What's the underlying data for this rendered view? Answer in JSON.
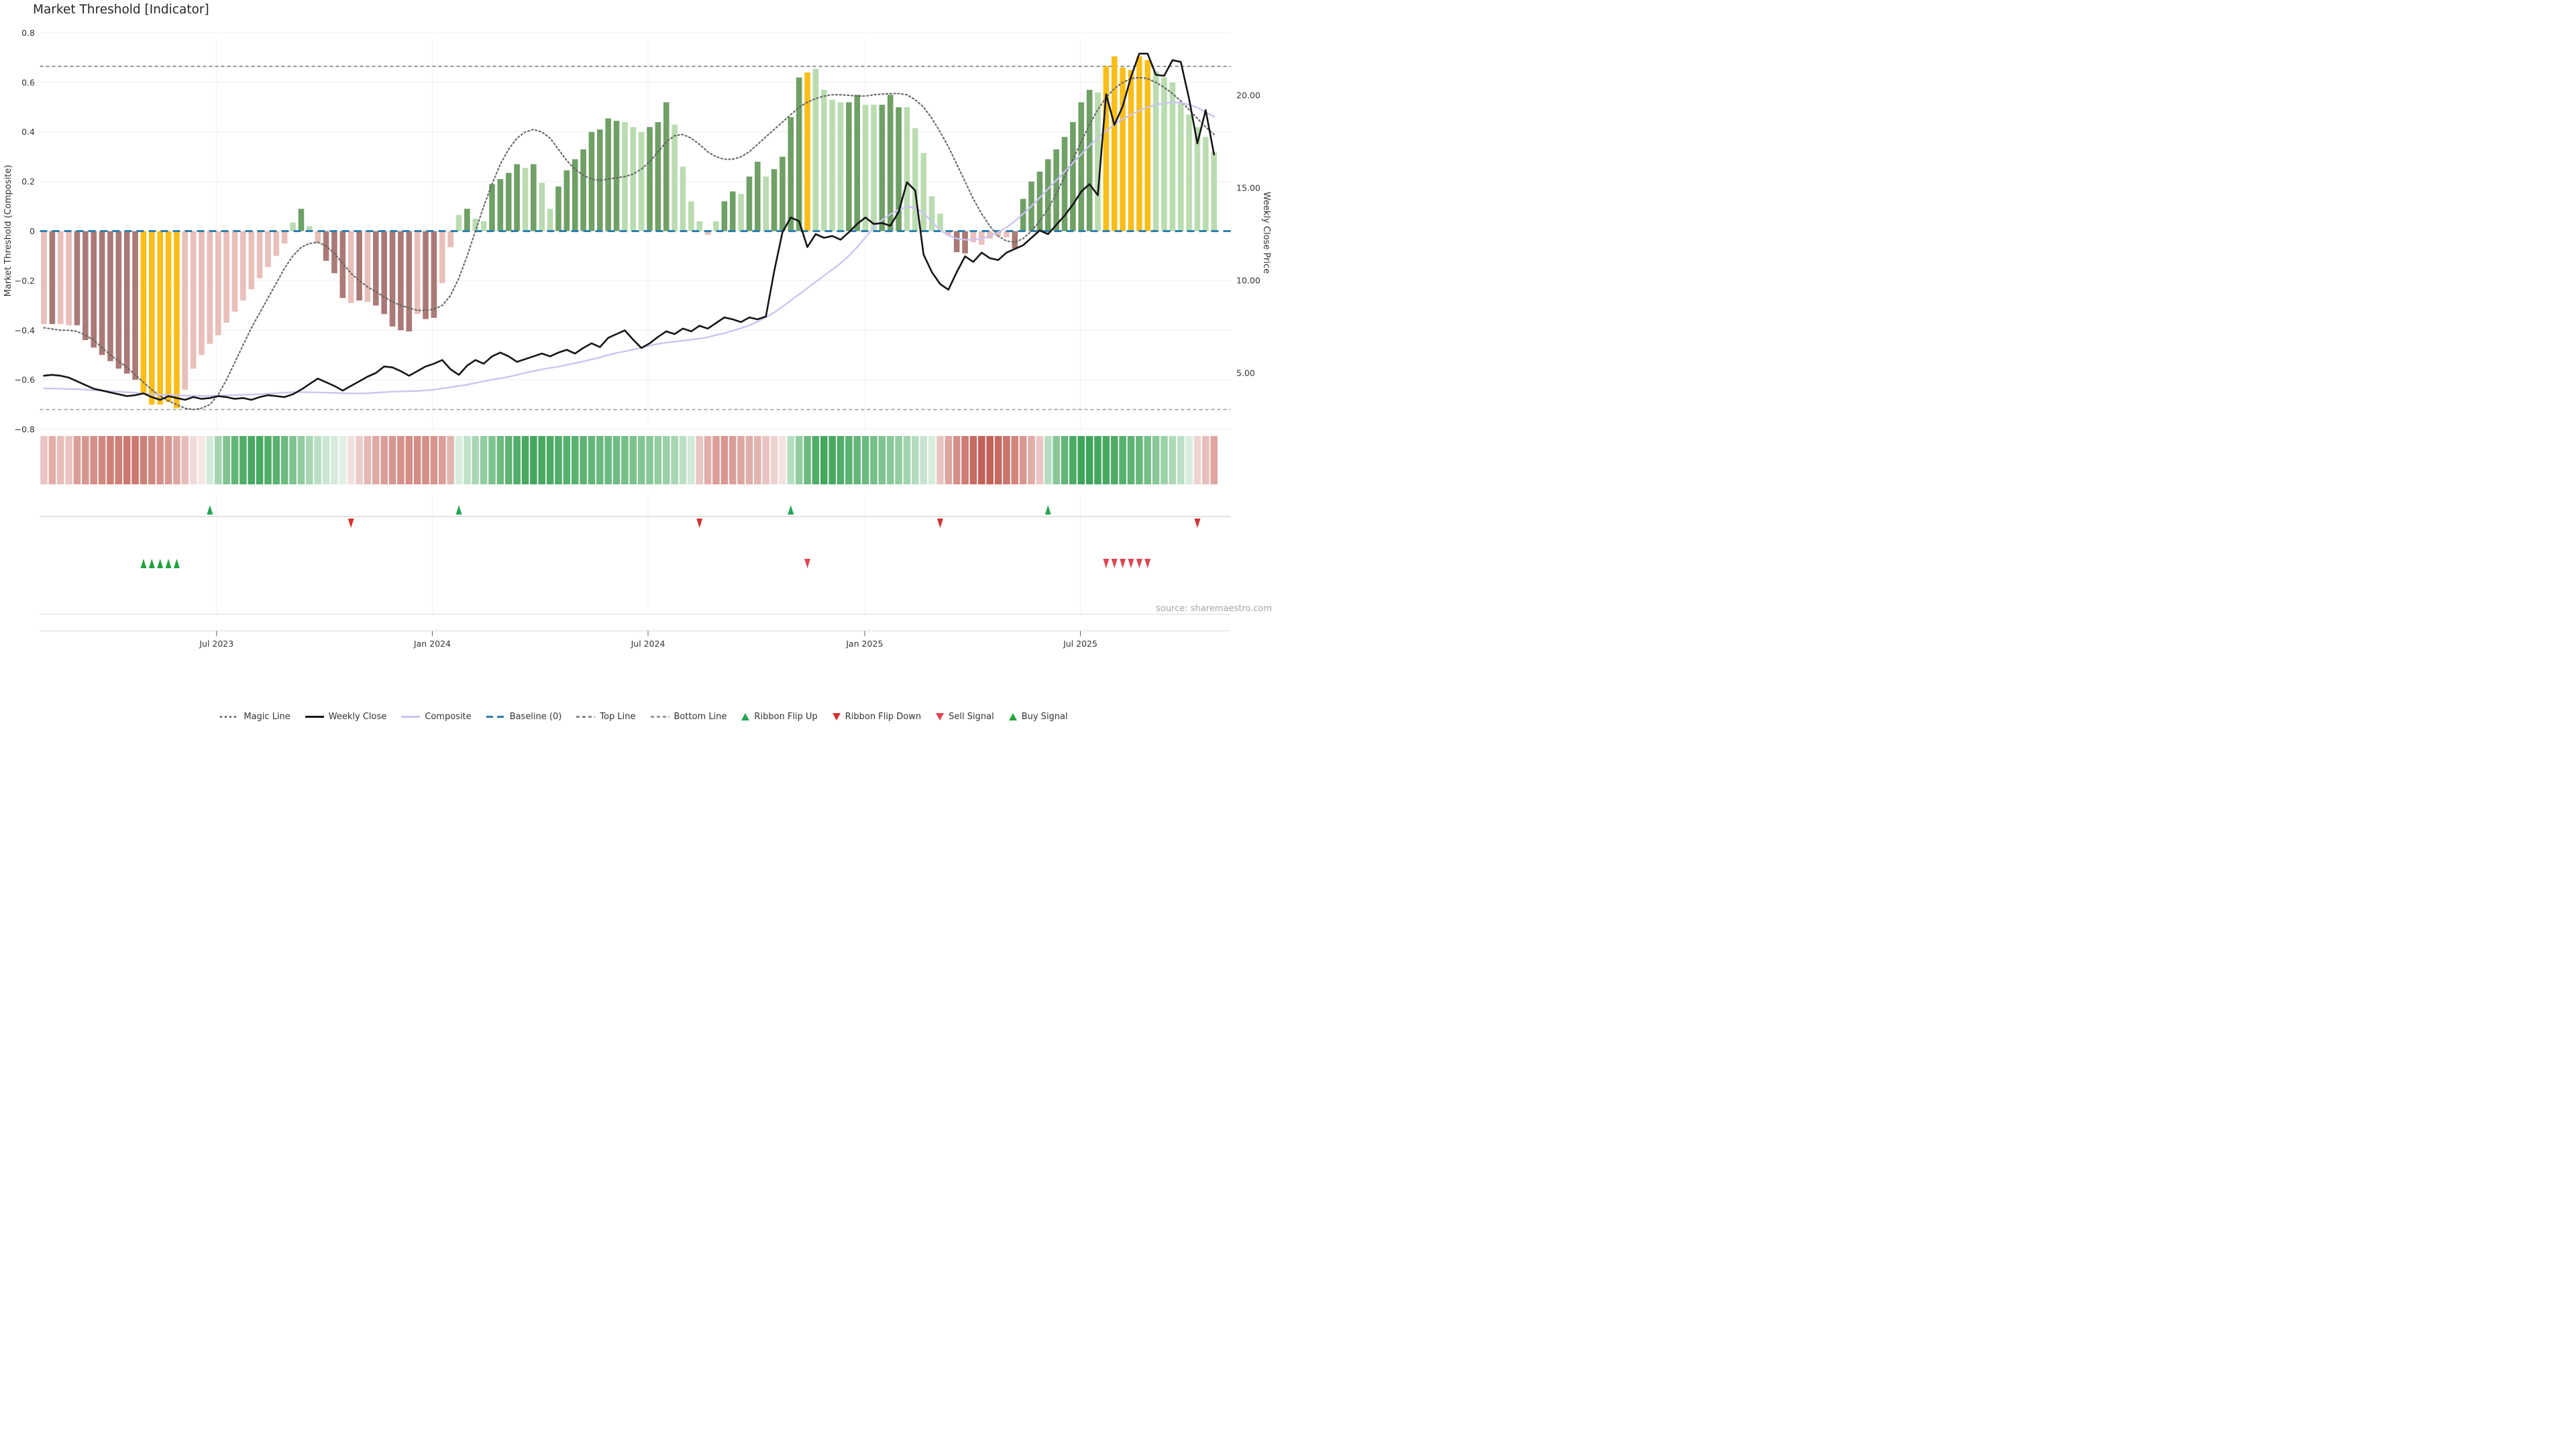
{
  "title": "Market Threshold [Indicator]",
  "source_note": "source: sharemaestro.com",
  "axes": {
    "left_label": "Market Threshold (Composite)",
    "right_label": "Weekly Close Price",
    "left_ticks": [
      {
        "label": "0.8",
        "v": 0.8
      },
      {
        "label": "0.6",
        "v": 0.6
      },
      {
        "label": "0.4",
        "v": 0.4
      },
      {
        "label": "0.2",
        "v": 0.2
      },
      {
        "label": "0",
        "v": 0.0
      },
      {
        "label": "−0.2",
        "v": -0.2
      },
      {
        "label": "−0.4",
        "v": -0.4
      },
      {
        "label": "−0.6",
        "v": -0.6
      },
      {
        "label": "−0.8",
        "v": -0.8
      }
    ],
    "right_ticks": [
      {
        "label": "20.00",
        "p": 20
      },
      {
        "label": "15.00",
        "p": 15
      },
      {
        "label": "10.00",
        "p": 10
      },
      {
        "label": "5.00",
        "p": 5
      }
    ],
    "x_ticks": [
      {
        "label": "Jul 2023",
        "week": 20.8
      },
      {
        "label": "Jan 2024",
        "week": 46.8
      },
      {
        "label": "Jul 2024",
        "week": 72.8
      },
      {
        "label": "Jan 2025",
        "week": 98.9
      },
      {
        "label": "Jul 2025",
        "week": 124.9
      }
    ]
  },
  "legend": [
    {
      "label": "Magic Line",
      "marker": "dotted",
      "color": "#6e6e6e"
    },
    {
      "label": "Weekly Close",
      "marker": "solid",
      "color": "#151515"
    },
    {
      "label": "Composite",
      "marker": "solid",
      "color": "#c9c3f1"
    },
    {
      "label": "Baseline (0)",
      "marker": "dashed",
      "color": "#2d7fad"
    },
    {
      "label": "Top Line",
      "marker": "dashed-sm",
      "color": "#8a8a8a"
    },
    {
      "label": "Bottom Line",
      "marker": "dashed-sm",
      "color": "#9a9a9a"
    },
    {
      "label": "Ribbon Flip Up",
      "marker": "tri-up",
      "color": "#23a455"
    },
    {
      "label": "Ribbon Flip Down",
      "marker": "tri-down",
      "color": "#d1342e"
    },
    {
      "label": "Sell Signal",
      "marker": "tri-down",
      "color": "#e04553"
    },
    {
      "label": "Buy Signal",
      "marker": "tri-up",
      "color": "#23a43f"
    }
  ],
  "colors": {
    "bar_dark_pink": "#aa7a76",
    "bar_light_pink": "#e8bfb9",
    "bar_gold": "#fbbe18",
    "bar_dark_green": "#6fa065",
    "bar_light_green": "#badcb0",
    "ribbon_pos": "#35a051",
    "ribbon_neg": "#c05a50",
    "baseline": "#2d7fad",
    "magic_line": "#656565",
    "weekly_close": "#151515",
    "composite": "#c9c3f1",
    "top_line": "#7d7d7d",
    "bottom_line": "#979797",
    "grid": "#ededf3",
    "grid_vert": "#f2f2f7",
    "separator": "#d9d9d9",
    "tick_text": "#333333",
    "source_text": "#a3a3a3",
    "flip_up": "#23a455",
    "flip_down": "#d1342e",
    "sell": "#e04553",
    "buy": "#23a43f"
  },
  "chart_data": {
    "type": "bar",
    "title": "Market Threshold [Indicator]",
    "xlabel": "",
    "ylabel_left": "Market Threshold (Composite)",
    "ylabel_right": "Weekly Close Price",
    "ylim_left": [
      -0.8,
      0.8
    ],
    "ylim_right_ticks": [
      5,
      10,
      15,
      20
    ],
    "top_line": 0.665,
    "bottom_line": -0.72,
    "baseline": 0,
    "weeks": 142,
    "threshold_bars": {
      "values": [
        -0.375,
        -0.375,
        -0.375,
        -0.38,
        -0.38,
        -0.44,
        -0.47,
        -0.5,
        -0.525,
        -0.555,
        -0.575,
        -0.6,
        -0.655,
        -0.7,
        -0.7,
        -0.69,
        -0.715,
        -0.64,
        -0.555,
        -0.5,
        -0.455,
        -0.42,
        -0.37,
        -0.325,
        -0.28,
        -0.235,
        -0.19,
        -0.145,
        -0.1,
        -0.05,
        0.035,
        0.09,
        0.02,
        -0.05,
        -0.12,
        -0.17,
        -0.27,
        -0.29,
        -0.28,
        -0.285,
        -0.3,
        -0.335,
        -0.385,
        -0.4,
        -0.405,
        -0.335,
        -0.355,
        -0.35,
        -0.21,
        -0.065,
        0.065,
        0.09,
        0.05,
        0.04,
        0.19,
        0.21,
        0.235,
        0.27,
        0.255,
        0.27,
        0.195,
        0.09,
        0.18,
        0.245,
        0.29,
        0.33,
        0.4,
        0.41,
        0.455,
        0.445,
        0.44,
        0.42,
        0.4,
        0.42,
        0.44,
        0.52,
        0.43,
        0.26,
        0.12,
        0.04,
        -0.015,
        0.04,
        0.12,
        0.16,
        0.15,
        0.22,
        0.28,
        0.22,
        0.25,
        0.3,
        0.46,
        0.62,
        0.64,
        0.655,
        0.57,
        0.53,
        0.52,
        0.52,
        0.55,
        0.51,
        0.51,
        0.51,
        0.55,
        0.5,
        0.5,
        0.415,
        0.315,
        0.14,
        0.07,
        -0.015,
        -0.085,
        -0.09,
        -0.045,
        -0.055,
        -0.03,
        -0.02,
        -0.025,
        -0.07,
        0.13,
        0.2,
        0.24,
        0.29,
        0.33,
        0.38,
        0.44,
        0.52,
        0.57,
        0.56,
        0.665,
        0.705,
        0.66,
        0.65,
        0.705,
        0.69,
        0.645,
        0.62,
        0.6,
        0.52,
        0.47,
        0.42,
        0.38,
        0.32
      ],
      "colors": [
        "lp",
        "dp",
        "lp",
        "lp",
        "dp",
        "dp",
        "dp",
        "dp",
        "dp",
        "dp",
        "dp",
        "dp",
        "g",
        "g",
        "g",
        "g",
        "g",
        "lp",
        "lp",
        "lp",
        "lp",
        "lp",
        "lp",
        "lp",
        "lp",
        "lp",
        "lp",
        "lp",
        "lp",
        "lp",
        "lg",
        "dg",
        "lg",
        "lp",
        "dp",
        "dp",
        "dp",
        "lp",
        "dp",
        "lp",
        "dp",
        "dp",
        "dp",
        "dp",
        "dp",
        "lp",
        "dp",
        "dp",
        "lp",
        "lp",
        "lg",
        "dg",
        "lg",
        "lg",
        "dg",
        "dg",
        "dg",
        "dg",
        "lg",
        "dg",
        "lg",
        "lg",
        "dg",
        "dg",
        "dg",
        "dg",
        "dg",
        "dg",
        "dg",
        "dg",
        "lg",
        "lg",
        "lg",
        "dg",
        "dg",
        "dg",
        "lg",
        "lg",
        "lg",
        "lg",
        "lp",
        "lg",
        "dg",
        "dg",
        "lg",
        "dg",
        "dg",
        "lg",
        "dg",
        "dg",
        "dg",
        "dg",
        "g",
        "lg",
        "lg",
        "lg",
        "lg",
        "dg",
        "dg",
        "lg",
        "lg",
        "dg",
        "dg",
        "dg",
        "lg",
        "lg",
        "lg",
        "lg",
        "lg",
        "lp",
        "dp",
        "dp",
        "lp",
        "lp",
        "lp",
        "lp",
        "lp",
        "dp",
        "dg",
        "dg",
        "dg",
        "dg",
        "dg",
        "dg",
        "dg",
        "dg",
        "dg",
        "lg",
        "g",
        "g",
        "g",
        "g",
        "g",
        "g",
        "lg",
        "lg",
        "lg",
        "lg",
        "lg",
        "lg",
        "lg",
        "lg"
      ]
    },
    "magic_line": [
      -0.39,
      -0.395,
      -0.4,
      -0.4,
      -0.405,
      -0.42,
      -0.44,
      -0.47,
      -0.5,
      -0.525,
      -0.55,
      -0.58,
      -0.61,
      -0.64,
      -0.665,
      -0.685,
      -0.7,
      -0.715,
      -0.72,
      -0.715,
      -0.7,
      -0.66,
      -0.6,
      -0.53,
      -0.46,
      -0.39,
      -0.33,
      -0.27,
      -0.21,
      -0.15,
      -0.1,
      -0.065,
      -0.05,
      -0.045,
      -0.06,
      -0.09,
      -0.13,
      -0.17,
      -0.2,
      -0.225,
      -0.245,
      -0.265,
      -0.285,
      -0.3,
      -0.31,
      -0.32,
      -0.32,
      -0.315,
      -0.3,
      -0.26,
      -0.19,
      -0.1,
      0.0,
      0.1,
      0.19,
      0.27,
      0.33,
      0.375,
      0.4,
      0.41,
      0.4,
      0.375,
      0.33,
      0.285,
      0.25,
      0.225,
      0.21,
      0.205,
      0.21,
      0.215,
      0.22,
      0.23,
      0.25,
      0.28,
      0.32,
      0.36,
      0.385,
      0.39,
      0.375,
      0.35,
      0.32,
      0.3,
      0.29,
      0.29,
      0.3,
      0.32,
      0.35,
      0.38,
      0.41,
      0.44,
      0.47,
      0.5,
      0.52,
      0.535,
      0.545,
      0.55,
      0.55,
      0.548,
      0.545,
      0.545,
      0.55,
      0.553,
      0.555,
      0.555,
      0.55,
      0.53,
      0.5,
      0.455,
      0.4,
      0.34,
      0.27,
      0.2,
      0.13,
      0.07,
      0.02,
      -0.02,
      -0.04,
      -0.045,
      -0.03,
      0.0,
      0.04,
      0.09,
      0.15,
      0.22,
      0.29,
      0.36,
      0.43,
      0.49,
      0.54,
      0.575,
      0.6,
      0.615,
      0.62,
      0.615,
      0.6,
      0.58,
      0.555,
      0.525,
      0.49,
      0.455,
      0.42,
      0.39
    ],
    "weekly_close": [
      4.85,
      4.9,
      4.85,
      4.75,
      4.55,
      4.35,
      4.15,
      4.05,
      3.95,
      3.85,
      3.75,
      3.8,
      3.9,
      3.7,
      3.55,
      3.75,
      3.65,
      3.55,
      3.7,
      3.6,
      3.65,
      3.75,
      3.7,
      3.6,
      3.65,
      3.55,
      3.7,
      3.8,
      3.75,
      3.7,
      3.85,
      4.1,
      4.4,
      4.7,
      4.5,
      4.3,
      4.05,
      4.3,
      4.55,
      4.8,
      5.0,
      5.35,
      5.3,
      5.1,
      4.85,
      5.1,
      5.35,
      5.5,
      5.7,
      5.2,
      4.9,
      5.4,
      5.7,
      5.5,
      5.9,
      6.1,
      5.9,
      5.6,
      5.75,
      5.9,
      6.05,
      5.9,
      6.1,
      6.25,
      6.05,
      6.35,
      6.6,
      6.4,
      6.9,
      7.1,
      7.3,
      6.8,
      6.35,
      6.6,
      6.95,
      7.25,
      7.1,
      7.4,
      7.25,
      7.55,
      7.4,
      7.7,
      8.0,
      7.9,
      7.75,
      8.0,
      7.9,
      8.05,
      10.5,
      12.6,
      13.4,
      13.2,
      11.8,
      12.5,
      12.3,
      12.4,
      12.2,
      12.6,
      13.05,
      13.4,
      13.05,
      13.1,
      12.95,
      13.7,
      15.3,
      14.85,
      11.4,
      10.45,
      9.8,
      9.5,
      10.45,
      11.3,
      11.0,
      11.5,
      11.2,
      11.1,
      11.5,
      11.7,
      11.9,
      12.3,
      12.7,
      12.5,
      13.0,
      13.5,
      14.1,
      14.8,
      15.2,
      14.6,
      20.05,
      18.4,
      19.4,
      21.0,
      22.25,
      22.25,
      21.1,
      21.05,
      21.9,
      21.8,
      19.8,
      17.4,
      19.2,
      16.8
    ],
    "composite": [
      -0.635,
      -0.635,
      -0.636,
      -0.637,
      -0.638,
      -0.64,
      -0.642,
      -0.644,
      -0.646,
      -0.648,
      -0.65,
      -0.652,
      -0.655,
      -0.658,
      -0.66,
      -0.662,
      -0.663,
      -0.664,
      -0.665,
      -0.665,
      -0.665,
      -0.664,
      -0.663,
      -0.662,
      -0.661,
      -0.66,
      -0.658,
      -0.656,
      -0.654,
      -0.652,
      -0.65,
      -0.65,
      -0.65,
      -0.651,
      -0.652,
      -0.653,
      -0.654,
      -0.655,
      -0.655,
      -0.654,
      -0.652,
      -0.65,
      -0.648,
      -0.647,
      -0.646,
      -0.645,
      -0.643,
      -0.64,
      -0.635,
      -0.63,
      -0.625,
      -0.62,
      -0.613,
      -0.606,
      -0.6,
      -0.594,
      -0.588,
      -0.58,
      -0.572,
      -0.565,
      -0.558,
      -0.552,
      -0.547,
      -0.54,
      -0.533,
      -0.526,
      -0.518,
      -0.51,
      -0.5,
      -0.492,
      -0.485,
      -0.478,
      -0.47,
      -0.462,
      -0.455,
      -0.45,
      -0.446,
      -0.442,
      -0.438,
      -0.434,
      -0.428,
      -0.42,
      -0.412,
      -0.402,
      -0.392,
      -0.38,
      -0.365,
      -0.348,
      -0.328,
      -0.305,
      -0.28,
      -0.255,
      -0.23,
      -0.205,
      -0.18,
      -0.155,
      -0.13,
      -0.1,
      -0.065,
      -0.025,
      0.015,
      0.045,
      0.068,
      0.086,
      0.098,
      0.094,
      0.072,
      0.038,
      0.005,
      -0.018,
      -0.03,
      -0.035,
      -0.035,
      -0.03,
      -0.02,
      -0.005,
      0.015,
      0.04,
      0.07,
      0.1,
      0.135,
      0.17,
      0.205,
      0.24,
      0.275,
      0.31,
      0.345,
      0.375,
      0.405,
      0.43,
      0.452,
      0.47,
      0.486,
      0.5,
      0.51,
      0.516,
      0.52,
      0.518,
      0.51,
      0.498,
      0.48,
      0.462
    ],
    "ribbon": [
      -0.3,
      -0.45,
      -0.35,
      -0.3,
      -0.55,
      -0.6,
      -0.65,
      -0.7,
      -0.75,
      -0.75,
      -0.8,
      -0.8,
      -0.75,
      -0.7,
      -0.65,
      -0.6,
      -0.5,
      -0.35,
      -0.15,
      -0.08,
      0.15,
      0.4,
      0.6,
      0.75,
      0.85,
      0.9,
      0.9,
      0.85,
      0.8,
      0.7,
      0.6,
      0.5,
      0.38,
      0.28,
      0.2,
      0.14,
      0.08,
      -0.12,
      -0.25,
      -0.38,
      -0.48,
      -0.55,
      -0.6,
      -0.63,
      -0.65,
      -0.66,
      -0.65,
      -0.62,
      -0.55,
      -0.4,
      0.12,
      0.25,
      0.38,
      0.5,
      0.6,
      0.7,
      0.78,
      0.85,
      0.9,
      0.92,
      0.9,
      0.88,
      0.85,
      0.82,
      0.8,
      0.78,
      0.75,
      0.72,
      0.7,
      0.68,
      0.65,
      0.62,
      0.58,
      0.55,
      0.5,
      0.45,
      0.38,
      0.28,
      0.15,
      -0.3,
      -0.45,
      -0.55,
      -0.6,
      -0.55,
      -0.5,
      -0.45,
      -0.4,
      -0.3,
      -0.2,
      -0.1,
      0.3,
      0.5,
      0.7,
      0.85,
      0.92,
      0.9,
      0.85,
      0.8,
      0.75,
      0.7,
      0.65,
      0.6,
      0.55,
      0.5,
      0.42,
      0.32,
      0.22,
      0.12,
      -0.3,
      -0.5,
      -0.65,
      -0.78,
      -0.88,
      -0.95,
      -0.95,
      -0.9,
      -0.82,
      -0.72,
      -0.6,
      -0.45,
      -0.28,
      0.3,
      0.55,
      0.75,
      0.88,
      0.95,
      0.95,
      0.92,
      0.9,
      0.86,
      0.82,
      0.78,
      0.72,
      0.65,
      0.55,
      0.45,
      0.35,
      0.28,
      0.12,
      -0.2,
      -0.35,
      -0.5
    ],
    "signals": {
      "ribbon_flip_up": [
        20,
        50,
        90,
        121
      ],
      "ribbon_flip_down": [
        37,
        79,
        108,
        139
      ],
      "buy": [
        12,
        13,
        14,
        15,
        16
      ],
      "sell": [
        92,
        128,
        129,
        130,
        131,
        132,
        133
      ]
    }
  }
}
